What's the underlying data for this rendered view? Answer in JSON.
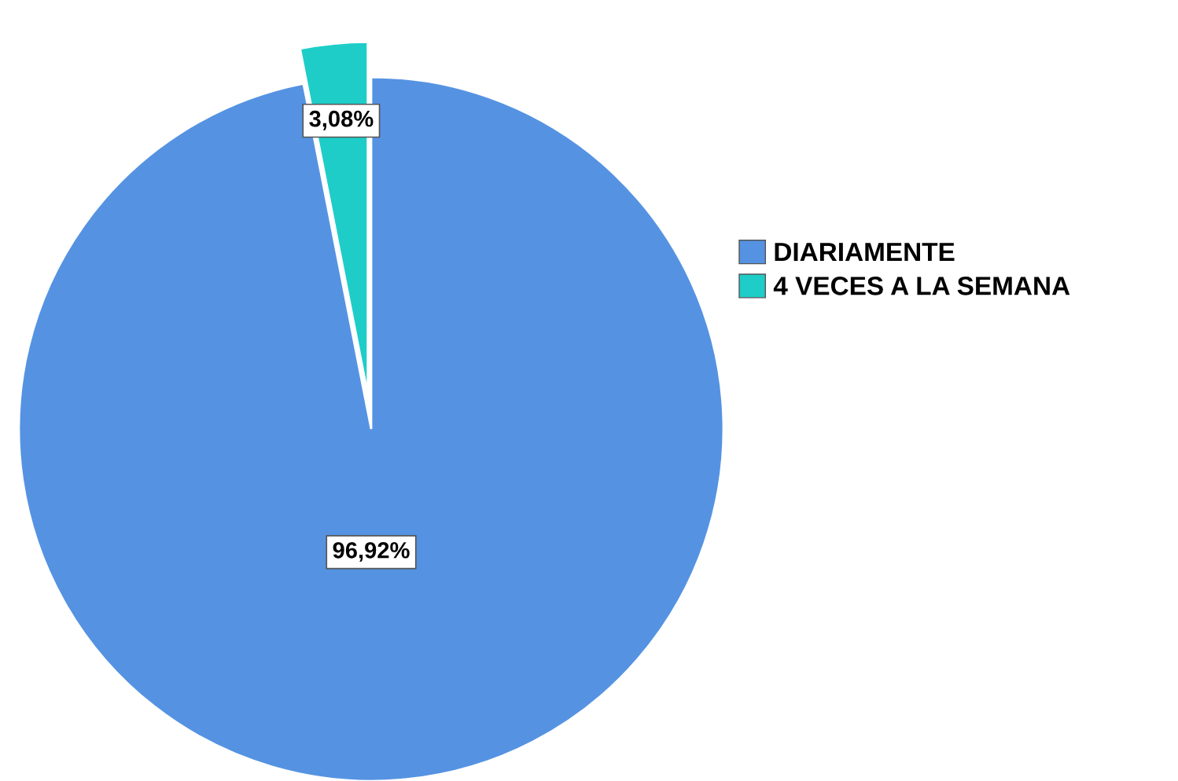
{
  "chart_data": {
    "type": "pie",
    "categories": [
      "DIARIAMENTE",
      "4 VECES A LA SEMANA"
    ],
    "values": [
      96.92,
      3.08
    ],
    "colors": [
      "#5593e2",
      "#1ecdc8"
    ],
    "value_labels": [
      "96,92%",
      "3,08%"
    ],
    "legend": "right"
  }
}
